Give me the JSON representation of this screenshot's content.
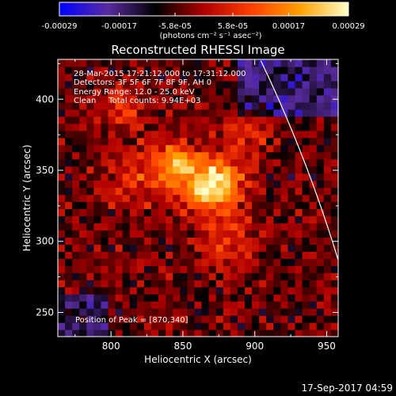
{
  "colorbar": {
    "ticks": [
      "-0.00029",
      "-0.00017",
      "-5.8e-05",
      "5.8e-05",
      "0.00017",
      "0.00029"
    ],
    "tick_values": [
      -0.00029,
      -0.00017,
      -5.8e-05,
      5.8e-05,
      0.00017,
      0.00029
    ],
    "units": "(photons cm⁻² s⁻¹ asec⁻²)"
  },
  "footer": {
    "timestamp": "17-Sep-2017 04:59"
  },
  "chart_data": {
    "type": "heatmap",
    "title": "Reconstructed RHESSI Image",
    "xlabel": "Heliocentric X (arcsec)",
    "ylabel": "Heliocentric Y (arcsec)",
    "xlim": [
      763,
      958
    ],
    "ylim": [
      233,
      428
    ],
    "x_ticks": [
      800,
      850,
      900,
      950
    ],
    "y_ticks": [
      250,
      300,
      350,
      400
    ],
    "x_tick_labels": [
      "800",
      "850",
      "900",
      "950"
    ],
    "y_tick_labels": [
      "250",
      "300",
      "350",
      "400"
    ],
    "value_range": [
      -0.00029,
      0.00029
    ],
    "colormap": [
      "#0000ff",
      "#5a2ca0",
      "#000000",
      "#b00000",
      "#ff4000",
      "#ffa000",
      "#ffffc8"
    ],
    "limb_color": "#ffffff",
    "peak": {
      "x": 870,
      "y": 340
    },
    "annotations": {
      "time": "28-Mar-2015 17:21:12.000 to 17:31:12.000",
      "detectors": "Detectors: 3F 5F 6F 7F 8F 9F, AH 0",
      "energy": "Energy Range: 12.0 - 25.0 keV",
      "clean": "Clean     Total counts: 9.94E+03",
      "peak": "Position of Peak = [870,340]"
    }
  }
}
